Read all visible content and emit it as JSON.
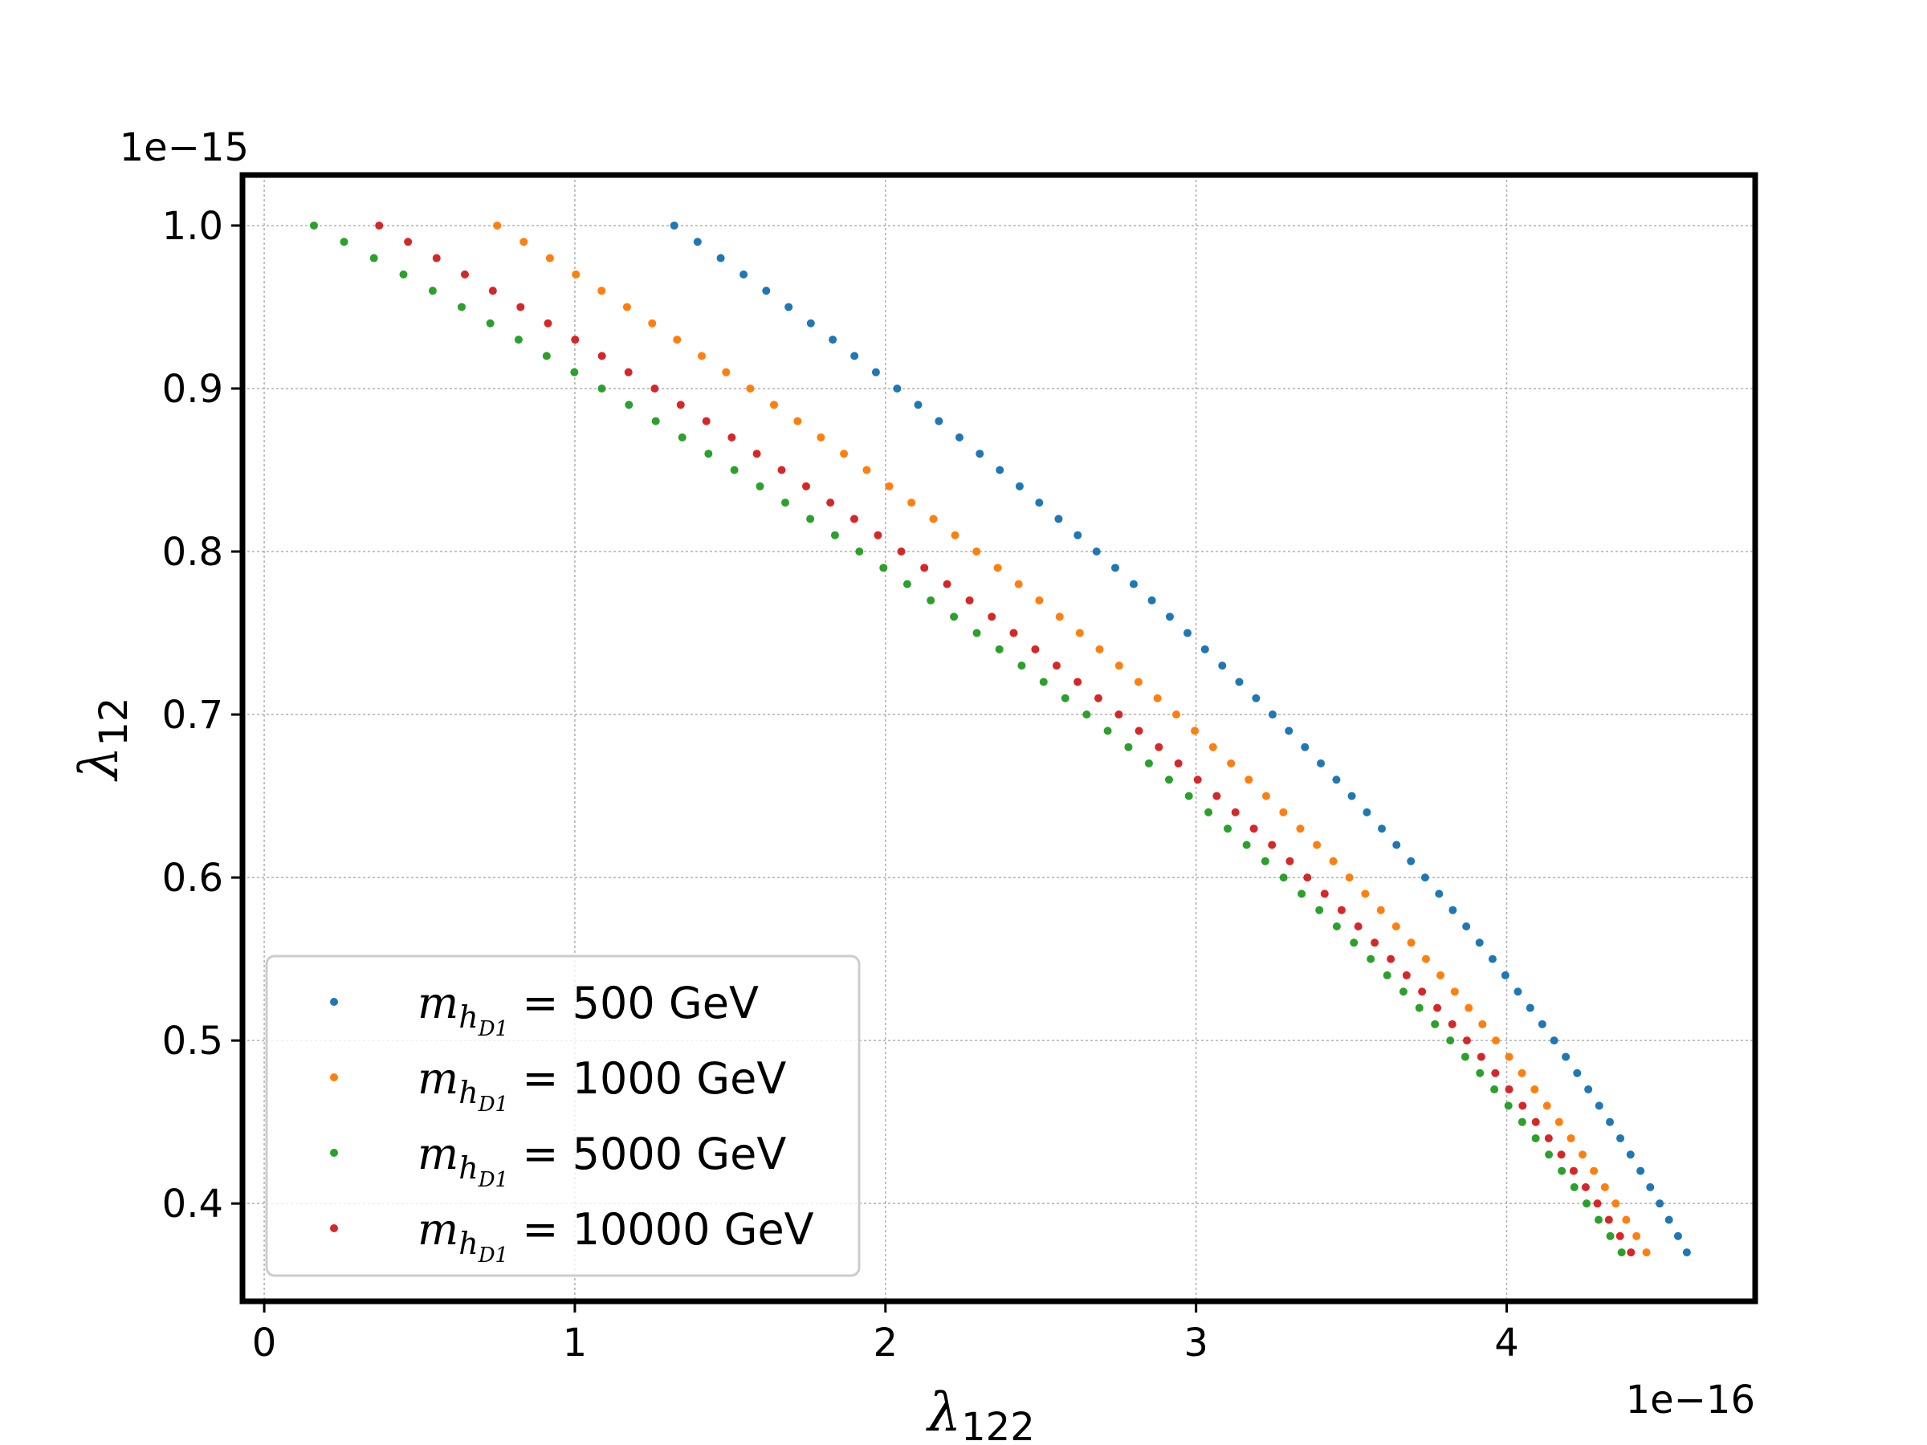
{
  "chart_data": {
    "type": "scatter",
    "title": "",
    "xlabel_symbol": "λ",
    "xlabel_sub": "122",
    "ylabel_symbol": "λ",
    "ylabel_sub": "12",
    "x_offset_text": "1e−16",
    "y_offset_text": "1e−15",
    "xlim": [
      -0.07,
      4.8
    ],
    "ylim": [
      0.34,
      1.031
    ],
    "xticks": [
      0,
      1,
      2,
      3,
      4
    ],
    "xtick_labels": [
      "0",
      "1",
      "2",
      "3",
      "4"
    ],
    "yticks": [
      0.4,
      0.5,
      0.6,
      0.7,
      0.8,
      0.9,
      1.0
    ],
    "ytick_labels": [
      "0.4",
      "0.5",
      "0.6",
      "0.7",
      "0.8",
      "0.9",
      "1.0"
    ],
    "grid": true,
    "legend_position": "lower-left",
    "y_range": {
      "start": 1.0,
      "end": 0.37,
      "step": -0.01
    },
    "series": [
      {
        "name": "m_hD1 = 500 GeV",
        "legend_math": "m",
        "legend_sub1": "h",
        "legend_sub2": "D1",
        "legend_value": " = 500 GeV",
        "color": "#1f77b4",
        "x_at_y_max": 1.32,
        "x_at_y_min": 4.58
      },
      {
        "name": "m_hD1 = 1000 GeV",
        "legend_math": "m",
        "legend_sub1": "h",
        "legend_sub2": "D1",
        "legend_value": " = 1000 GeV",
        "color": "#ff7f0e",
        "x_at_y_max": 0.75,
        "x_at_y_min": 4.45
      },
      {
        "name": "m_hD1 = 5000 GeV",
        "legend_math": "m",
        "legend_sub1": "h",
        "legend_sub2": "D1",
        "legend_value": " = 5000 GeV",
        "color": "#2ca02c",
        "x_at_y_max": 0.16,
        "x_at_y_min": 4.37
      },
      {
        "name": "m_hD1 = 10000 GeV",
        "legend_math": "m",
        "legend_sub1": "h",
        "legend_sub2": "D1",
        "legend_value": " = 10000 GeV",
        "color": "#d62728",
        "x_at_y_max": 0.37,
        "x_at_y_min": 4.4
      }
    ]
  }
}
